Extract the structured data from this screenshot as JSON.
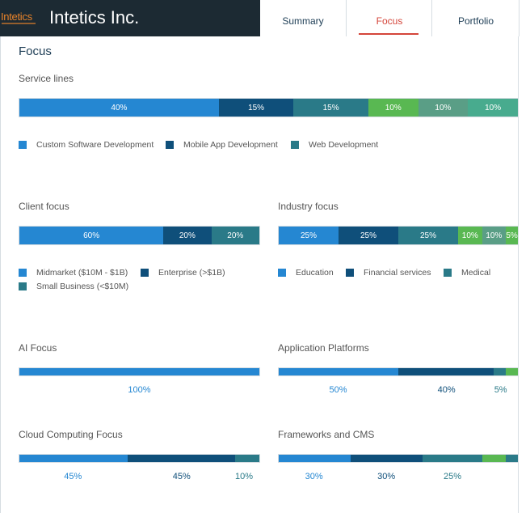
{
  "header": {
    "logo_text": "Intetics",
    "company_name": "Intetics Inc.",
    "tabs": [
      {
        "label": "Summary"
      },
      {
        "label": "Focus"
      },
      {
        "label": "Portfolio"
      }
    ]
  },
  "colors": {
    "c1": "#2587d2",
    "c2": "#0f4f7a",
    "c3": "#2a7a88",
    "c4": "#59b852",
    "c5": "#5a9e86",
    "c6": "#48ab8e"
  },
  "focus": {
    "title": "Focus",
    "service_lines": {
      "title": "Service lines",
      "segments": [
        {
          "label": "40%",
          "value": 40,
          "color": "#2587d2"
        },
        {
          "label": "15%",
          "value": 15,
          "color": "#0f4f7a"
        },
        {
          "label": "15%",
          "value": 15,
          "color": "#2a7a88"
        },
        {
          "label": "10%",
          "value": 10,
          "color": "#59b852"
        },
        {
          "label": "10%",
          "value": 10,
          "color": "#5a9e86"
        },
        {
          "label": "10%",
          "value": 10,
          "color": "#48ab8e"
        }
      ],
      "legend": [
        {
          "label": "Custom Software Development",
          "color": "#2587d2"
        },
        {
          "label": "Mobile App Development",
          "color": "#0f4f7a"
        },
        {
          "label": "Web Development",
          "color": "#2a7a88"
        }
      ]
    },
    "client_focus": {
      "title": "Client focus",
      "segments": [
        {
          "label": "60%",
          "value": 60,
          "color": "#2587d2"
        },
        {
          "label": "20%",
          "value": 20,
          "color": "#0f4f7a"
        },
        {
          "label": "20%",
          "value": 20,
          "color": "#2a7a88"
        }
      ],
      "legend": [
        {
          "label": "Midmarket ($10M - $1B)",
          "color": "#2587d2"
        },
        {
          "label": "Enterprise (>$1B)",
          "color": "#0f4f7a"
        },
        {
          "label": "Small Business (<$10M)",
          "color": "#2a7a88"
        }
      ]
    },
    "industry_focus": {
      "title": "Industry focus",
      "segments": [
        {
          "label": "25%",
          "value": 25,
          "color": "#2587d2"
        },
        {
          "label": "25%",
          "value": 25,
          "color": "#0f4f7a"
        },
        {
          "label": "25%",
          "value": 25,
          "color": "#2a7a88"
        },
        {
          "label": "10%",
          "value": 10,
          "color": "#59b852"
        },
        {
          "label": "10%",
          "value": 10,
          "color": "#5a9e86"
        },
        {
          "label": "5%",
          "value": 5,
          "color": "#59b852"
        }
      ],
      "legend": [
        {
          "label": "Education",
          "color": "#2587d2"
        },
        {
          "label": "Financial services",
          "color": "#0f4f7a"
        },
        {
          "label": "Medical",
          "color": "#2a7a88"
        }
      ]
    },
    "ai_focus": {
      "title": "AI Focus",
      "segments": [
        {
          "label": "100%",
          "value": 100,
          "color": "#2587d2"
        }
      ]
    },
    "application_platforms": {
      "title": "Application Platforms",
      "segments": [
        {
          "label": "50%",
          "value": 50,
          "color": "#2587d2"
        },
        {
          "label": "40%",
          "value": 40,
          "color": "#0f4f7a"
        },
        {
          "label": "5%",
          "value": 5,
          "color": "#2a7a88"
        },
        {
          "label": "",
          "value": 5,
          "color": "#59b852"
        }
      ]
    },
    "cloud_computing_focus": {
      "title": "Cloud Computing Focus",
      "segments": [
        {
          "label": "45%",
          "value": 45,
          "color": "#2587d2"
        },
        {
          "label": "45%",
          "value": 45,
          "color": "#0f4f7a"
        },
        {
          "label": "10%",
          "value": 10,
          "color": "#2a7a88"
        }
      ]
    },
    "frameworks_cms": {
      "title": "Frameworks and CMS",
      "segments": [
        {
          "label": "30%",
          "value": 30,
          "color": "#2587d2"
        },
        {
          "label": "30%",
          "value": 30,
          "color": "#0f4f7a"
        },
        {
          "label": "25%",
          "value": 25,
          "color": "#2a7a88"
        },
        {
          "label": "",
          "value": 10,
          "color": "#59b852"
        },
        {
          "label": "",
          "value": 5,
          "color": "#2a7a88"
        }
      ]
    }
  }
}
